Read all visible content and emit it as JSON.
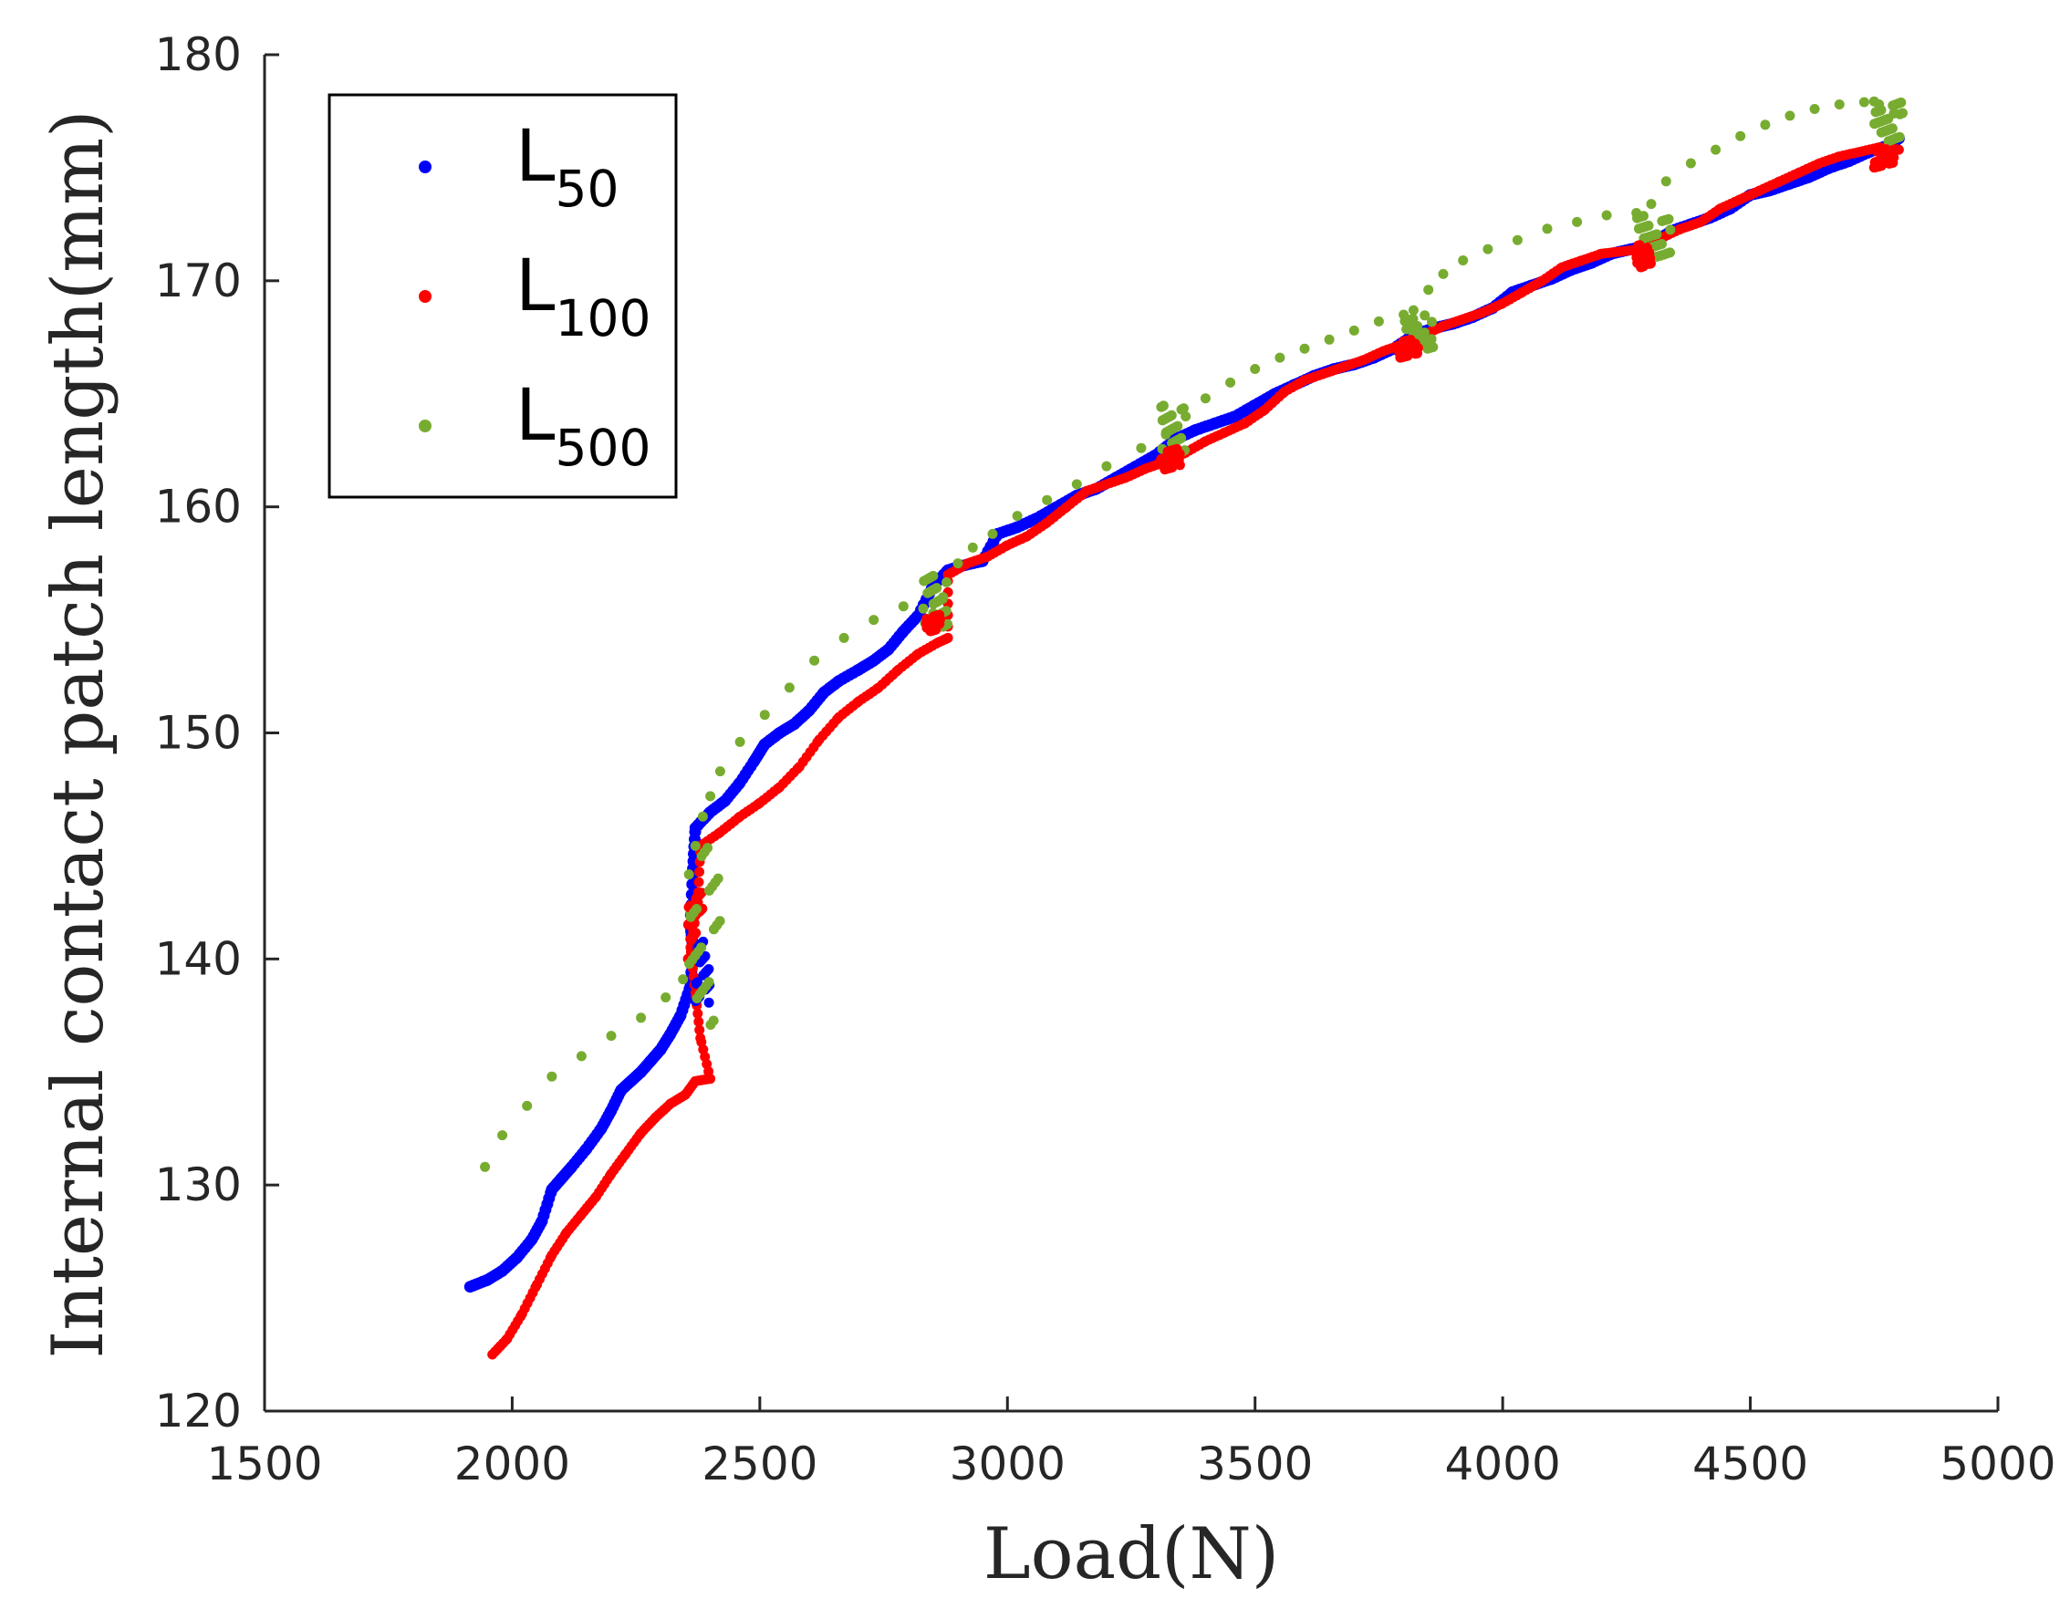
{
  "chart_data": {
    "type": "scatter",
    "title": "",
    "xlabel": "Load(N)",
    "ylabel": "Internal contact patch length(mm)",
    "xlim": [
      1500,
      5000
    ],
    "ylim": [
      120,
      180
    ],
    "xticks": [
      "1500",
      "2000",
      "2500",
      "3000",
      "3500",
      "4000",
      "4500",
      "5000"
    ],
    "yticks": [
      "120",
      "130",
      "140",
      "150",
      "160",
      "170",
      "180"
    ],
    "legend": {
      "position": "top-left",
      "entries": [
        {
          "base": "L",
          "sub": "50"
        },
        {
          "base": "L",
          "sub": "100"
        },
        {
          "base": "L",
          "sub": "500"
        }
      ]
    },
    "series": [
      {
        "name": "L50",
        "color": "#0000ff",
        "points": [
          [
            1915,
            125.5
          ],
          [
            1950,
            125.8
          ],
          [
            1980,
            126.2
          ],
          [
            2010,
            126.8
          ],
          [
            2040,
            127.6
          ],
          [
            2060,
            128.4
          ],
          [
            2080,
            129.8
          ],
          [
            2100,
            130.3
          ],
          [
            2120,
            130.8
          ],
          [
            2150,
            131.6
          ],
          [
            2180,
            132.5
          ],
          [
            2200,
            133.3
          ],
          [
            2220,
            134.2
          ],
          [
            2240,
            134.6
          ],
          [
            2260,
            135.0
          ],
          [
            2280,
            135.5
          ],
          [
            2300,
            136.0
          ],
          [
            2320,
            136.7
          ],
          [
            2340,
            137.5
          ],
          [
            2360,
            138.8
          ],
          [
            2365,
            140.5
          ],
          [
            2360,
            141.5
          ],
          [
            2365,
            144.0
          ],
          [
            2370,
            145.8
          ],
          [
            2400,
            146.5
          ],
          [
            2430,
            147.0
          ],
          [
            2460,
            147.8
          ],
          [
            2490,
            148.8
          ],
          [
            2510,
            149.5
          ],
          [
            2540,
            150.0
          ],
          [
            2570,
            150.4
          ],
          [
            2600,
            151.0
          ],
          [
            2630,
            151.8
          ],
          [
            2660,
            152.3
          ],
          [
            2700,
            152.8
          ],
          [
            2730,
            153.2
          ],
          [
            2760,
            153.7
          ],
          [
            2790,
            154.5
          ],
          [
            2820,
            155.2
          ],
          [
            2850,
            156.5
          ],
          [
            2880,
            157.2
          ],
          [
            2910,
            157.4
          ],
          [
            2950,
            157.6
          ],
          [
            2980,
            158.8
          ],
          [
            3020,
            159.1
          ],
          [
            3060,
            159.5
          ],
          [
            3100,
            160.0
          ],
          [
            3140,
            160.5
          ],
          [
            3180,
            160.8
          ],
          [
            3220,
            161.3
          ],
          [
            3260,
            161.8
          ],
          [
            3300,
            162.3
          ],
          [
            3340,
            163.0
          ],
          [
            3380,
            163.4
          ],
          [
            3420,
            163.7
          ],
          [
            3460,
            164.0
          ],
          [
            3500,
            164.5
          ],
          [
            3540,
            165.0
          ],
          [
            3580,
            165.4
          ],
          [
            3620,
            165.8
          ],
          [
            3660,
            166.1
          ],
          [
            3700,
            166.3
          ],
          [
            3740,
            166.6
          ],
          [
            3780,
            167.0
          ],
          [
            3820,
            167.6
          ],
          [
            3860,
            167.9
          ],
          [
            3900,
            168.1
          ],
          [
            3940,
            168.4
          ],
          [
            3980,
            168.8
          ],
          [
            4020,
            169.5
          ],
          [
            4060,
            169.8
          ],
          [
            4100,
            170.1
          ],
          [
            4140,
            170.5
          ],
          [
            4180,
            170.8
          ],
          [
            4220,
            171.2
          ],
          [
            4260,
            171.4
          ],
          [
            4300,
            171.6
          ],
          [
            4340,
            172.2
          ],
          [
            4380,
            172.5
          ],
          [
            4420,
            172.8
          ],
          [
            4460,
            173.2
          ],
          [
            4500,
            173.8
          ],
          [
            4540,
            174.0
          ],
          [
            4580,
            174.3
          ],
          [
            4620,
            174.6
          ],
          [
            4660,
            175.0
          ],
          [
            4700,
            175.3
          ],
          [
            4740,
            175.7
          ],
          [
            4780,
            176.0
          ],
          [
            4800,
            176.3
          ]
        ]
      },
      {
        "name": "L100",
        "color": "#ff0000",
        "points": [
          [
            1960,
            122.5
          ],
          [
            1990,
            123.2
          ],
          [
            2020,
            124.3
          ],
          [
            2050,
            125.6
          ],
          [
            2080,
            126.9
          ],
          [
            2110,
            127.9
          ],
          [
            2140,
            128.7
          ],
          [
            2170,
            129.5
          ],
          [
            2200,
            130.5
          ],
          [
            2230,
            131.4
          ],
          [
            2260,
            132.3
          ],
          [
            2290,
            133.0
          ],
          [
            2320,
            133.6
          ],
          [
            2350,
            134.0
          ],
          [
            2370,
            134.6
          ],
          [
            2400,
            134.7
          ],
          [
            2380,
            136.5
          ],
          [
            2370,
            138.5
          ],
          [
            2360,
            140.5
          ],
          [
            2375,
            142.5
          ],
          [
            2380,
            145.0
          ],
          [
            2420,
            145.6
          ],
          [
            2460,
            146.3
          ],
          [
            2500,
            146.9
          ],
          [
            2540,
            147.6
          ],
          [
            2580,
            148.5
          ],
          [
            2620,
            149.7
          ],
          [
            2660,
            150.7
          ],
          [
            2700,
            151.4
          ],
          [
            2740,
            152.0
          ],
          [
            2780,
            152.8
          ],
          [
            2820,
            153.5
          ],
          [
            2860,
            154.0
          ],
          [
            2880,
            154.2
          ],
          [
            2880,
            157.0
          ],
          [
            2920,
            157.5
          ],
          [
            2960,
            157.8
          ],
          [
            3000,
            158.3
          ],
          [
            3040,
            158.7
          ],
          [
            3080,
            159.3
          ],
          [
            3120,
            160.0
          ],
          [
            3160,
            160.7
          ],
          [
            3200,
            161.0
          ],
          [
            3240,
            161.3
          ],
          [
            3280,
            161.7
          ],
          [
            3320,
            162.0
          ],
          [
            3360,
            162.4
          ],
          [
            3400,
            162.9
          ],
          [
            3440,
            163.3
          ],
          [
            3480,
            163.7
          ],
          [
            3520,
            164.3
          ],
          [
            3560,
            165.1
          ],
          [
            3600,
            165.6
          ],
          [
            3640,
            165.9
          ],
          [
            3680,
            166.2
          ],
          [
            3720,
            166.5
          ],
          [
            3760,
            166.9
          ],
          [
            3800,
            167.2
          ],
          [
            3840,
            167.6
          ],
          [
            3880,
            168.0
          ],
          [
            3920,
            168.3
          ],
          [
            3960,
            168.6
          ],
          [
            4000,
            169.0
          ],
          [
            4040,
            169.5
          ],
          [
            4080,
            170.0
          ],
          [
            4120,
            170.6
          ],
          [
            4160,
            170.9
          ],
          [
            4200,
            171.2
          ],
          [
            4240,
            171.3
          ],
          [
            4280,
            171.4
          ],
          [
            4320,
            171.9
          ],
          [
            4360,
            172.3
          ],
          [
            4400,
            172.6
          ],
          [
            4440,
            173.2
          ],
          [
            4480,
            173.6
          ],
          [
            4520,
            174.0
          ],
          [
            4560,
            174.4
          ],
          [
            4600,
            174.8
          ],
          [
            4640,
            175.2
          ],
          [
            4680,
            175.5
          ],
          [
            4720,
            175.7
          ],
          [
            4760,
            175.9
          ],
          [
            4800,
            175.8
          ]
        ]
      },
      {
        "name": "L500",
        "color": "#77ac30",
        "points": [
          [
            1945,
            130.8
          ],
          [
            1980,
            132.2
          ],
          [
            2030,
            133.5
          ],
          [
            2080,
            134.8
          ],
          [
            2140,
            135.7
          ],
          [
            2200,
            136.6
          ],
          [
            2260,
            137.4
          ],
          [
            2310,
            138.3
          ],
          [
            2345,
            139.1
          ],
          [
            2360,
            142.0
          ],
          [
            2370,
            145.0
          ],
          [
            2385,
            146.3
          ],
          [
            2400,
            147.2
          ],
          [
            2420,
            148.3
          ],
          [
            2460,
            149.6
          ],
          [
            2510,
            150.8
          ],
          [
            2560,
            152.0
          ],
          [
            2610,
            153.2
          ],
          [
            2670,
            154.2
          ],
          [
            2730,
            155.0
          ],
          [
            2790,
            155.6
          ],
          [
            2830,
            155.5
          ],
          [
            2850,
            155.3
          ],
          [
            2870,
            156.0
          ],
          [
            2900,
            157.5
          ],
          [
            2930,
            158.2
          ],
          [
            2970,
            158.8
          ],
          [
            3020,
            159.6
          ],
          [
            3080,
            160.3
          ],
          [
            3140,
            161.0
          ],
          [
            3200,
            161.8
          ],
          [
            3270,
            162.6
          ],
          [
            3320,
            163.2
          ],
          [
            3360,
            164.0
          ],
          [
            3400,
            164.8
          ],
          [
            3450,
            165.5
          ],
          [
            3500,
            166.1
          ],
          [
            3550,
            166.6
          ],
          [
            3600,
            167.0
          ],
          [
            3650,
            167.4
          ],
          [
            3700,
            167.8
          ],
          [
            3750,
            168.2
          ],
          [
            3800,
            168.5
          ],
          [
            3820,
            168.7
          ],
          [
            3850,
            169.6
          ],
          [
            3880,
            170.3
          ],
          [
            3920,
            170.9
          ],
          [
            3970,
            171.4
          ],
          [
            4030,
            171.8
          ],
          [
            4090,
            172.3
          ],
          [
            4150,
            172.6
          ],
          [
            4210,
            172.9
          ],
          [
            4270,
            173.0
          ],
          [
            4300,
            173.4
          ],
          [
            4330,
            174.4
          ],
          [
            4380,
            175.2
          ],
          [
            4430,
            175.8
          ],
          [
            4480,
            176.4
          ],
          [
            4530,
            176.9
          ],
          [
            4580,
            177.3
          ],
          [
            4630,
            177.6
          ],
          [
            4680,
            177.8
          ],
          [
            4730,
            177.9
          ],
          [
            4760,
            177.8
          ],
          [
            4790,
            177.4
          ]
        ]
      }
    ],
    "clusters": [
      {
        "color": "#ff0000",
        "x": [
          2355,
          2385
        ],
        "y": [
          140,
          143
        ]
      },
      {
        "color": "#0000ff",
        "x": [
          2370,
          2400
        ],
        "y": [
          138,
          141
        ]
      },
      {
        "color": "#77ac30",
        "x": [
          2355,
          2420
        ],
        "y": [
          137,
          145
        ]
      },
      {
        "color": "#77ac30",
        "x": [
          2830,
          2880
        ],
        "y": [
          154.5,
          157
        ]
      },
      {
        "color": "#ff0000",
        "x": [
          2835,
          2865
        ],
        "y": [
          154.5,
          155.3
        ]
      },
      {
        "color": "#77ac30",
        "x": [
          3310,
          3360
        ],
        "y": [
          162,
          164.5
        ]
      },
      {
        "color": "#ff0000",
        "x": [
          3310,
          3350
        ],
        "y": [
          161.6,
          162.6
        ]
      },
      {
        "color": "#77ac30",
        "x": [
          3800,
          3860
        ],
        "y": [
          167,
          168.5
        ]
      },
      {
        "color": "#ff0000",
        "x": [
          3790,
          3830
        ],
        "y": [
          166.5,
          167.4
        ]
      },
      {
        "color": "#77ac30",
        "x": [
          4270,
          4340
        ],
        "y": [
          171,
          173
        ]
      },
      {
        "color": "#ff0000",
        "x": [
          4270,
          4300
        ],
        "y": [
          170.6,
          171.6
        ]
      },
      {
        "color": "#77ac30",
        "x": [
          4750,
          4810
        ],
        "y": [
          176,
          178
        ]
      },
      {
        "color": "#ff0000",
        "x": [
          4750,
          4790
        ],
        "y": [
          175,
          175.9
        ]
      }
    ]
  }
}
